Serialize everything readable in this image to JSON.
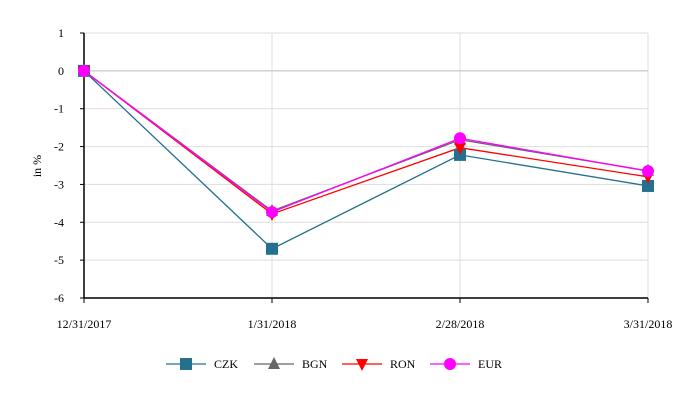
{
  "chart_data": {
    "type": "line",
    "title": "",
    "xlabel": "",
    "ylabel": "in %",
    "ylim": [
      -6,
      1
    ],
    "yticks": [
      "1",
      "0",
      "-1",
      "-2",
      "-3",
      "-4",
      "-5",
      "-6"
    ],
    "categories": [
      "12/31/2017",
      "1/31/2018",
      "2/28/2018",
      "3/31/2018"
    ],
    "grid": true,
    "legend": "bottom",
    "series": [
      {
        "name": "CZK",
        "values": [
          0,
          -4.7,
          -2.22,
          -3.04
        ],
        "color": "#23708f",
        "marker": "square"
      },
      {
        "name": "BGN",
        "values": [
          0,
          -3.7,
          -1.82,
          -2.64
        ],
        "color": "#666666",
        "marker": "triangle-up"
      },
      {
        "name": "RON",
        "values": [
          0,
          -3.78,
          -2.03,
          -2.8
        ],
        "color": "#ff0000",
        "marker": "triangle-down"
      },
      {
        "name": "EUR",
        "values": [
          0,
          -3.73,
          -1.78,
          -2.65
        ],
        "color": "#ff00ff",
        "marker": "circle"
      }
    ]
  }
}
